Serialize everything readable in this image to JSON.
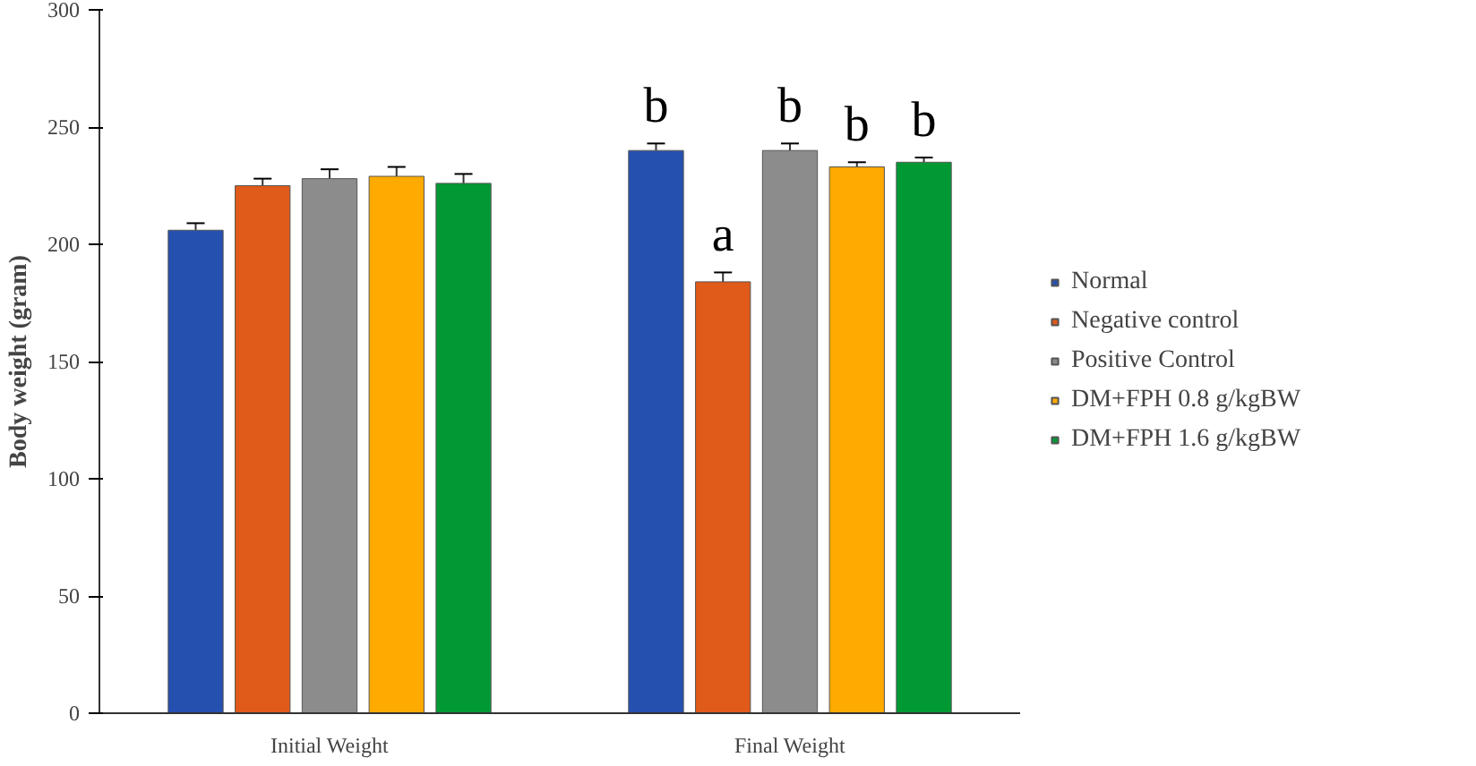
{
  "chart_data": {
    "type": "bar",
    "ylabel": "Body weight (gram)",
    "categories": [
      "Initial Weight",
      "Final Weight"
    ],
    "ylim": [
      0,
      300
    ],
    "yticks": [
      0,
      50,
      100,
      150,
      200,
      250,
      300
    ],
    "grid": false,
    "legend": "right",
    "series": [
      {
        "name": "Normal",
        "color": "#2550b0",
        "values": [
          206,
          240
        ],
        "errors": [
          3,
          3
        ],
        "value_labels": [
          null,
          "b"
        ]
      },
      {
        "name": "Negative control",
        "color": "#e05a1a",
        "values": [
          225,
          184
        ],
        "errors": [
          3,
          4
        ],
        "value_labels": [
          null,
          "a"
        ]
      },
      {
        "name": "Positive Control",
        "color": "#8c8c8c",
        "values": [
          228,
          240
        ],
        "errors": [
          4,
          3
        ],
        "value_labels": [
          null,
          "b"
        ]
      },
      {
        "name": "DM+FPH 0.8 g/kgBW",
        "color": "#ffaa00",
        "values": [
          229,
          233
        ],
        "errors": [
          4,
          2
        ],
        "value_labels": [
          null,
          "b"
        ]
      },
      {
        "name": "DM+FPH 1.6 g/kgBW",
        "color": "#009933",
        "values": [
          226,
          235
        ],
        "errors": [
          4,
          2
        ],
        "value_labels": [
          null,
          "b"
        ]
      }
    ]
  }
}
